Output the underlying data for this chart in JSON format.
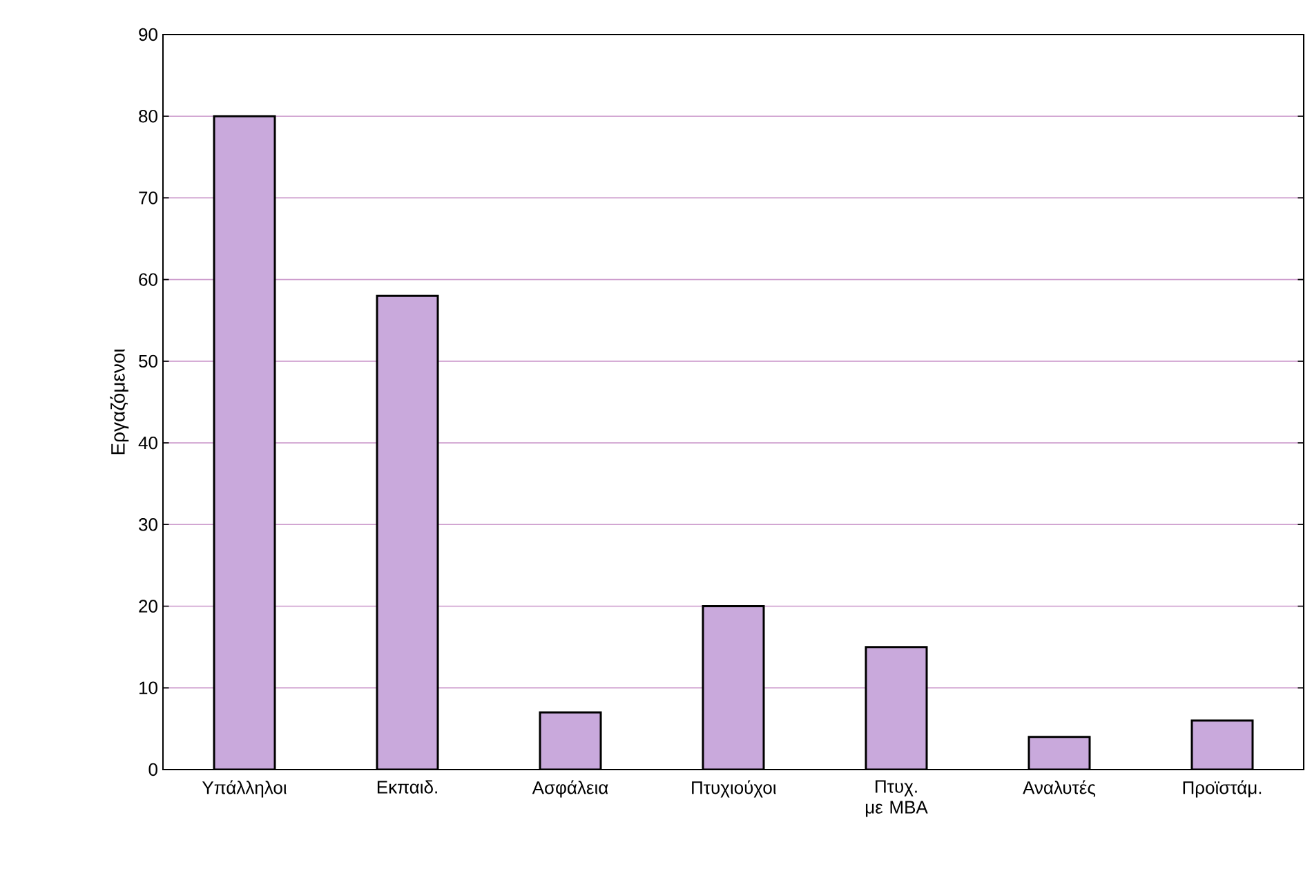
{
  "chart_data": {
    "type": "bar",
    "ylabel": "Εργαζόμενοι",
    "categories": [
      "Υπάλληλοι",
      "Εκπαιδ.",
      "Ασφάλεια",
      "Πτυχιούχοι",
      "Πτυχ. με MBA",
      "Αναλυτές",
      "Προϊστάμ."
    ],
    "values": [
      80,
      58,
      7,
      20,
      15,
      4,
      6
    ],
    "color": "#c9a9dc",
    "ylim": [
      0,
      90
    ],
    "yticks": [
      0,
      10,
      20,
      30,
      40,
      50,
      60,
      70,
      80,
      90
    ],
    "grid": "y"
  }
}
